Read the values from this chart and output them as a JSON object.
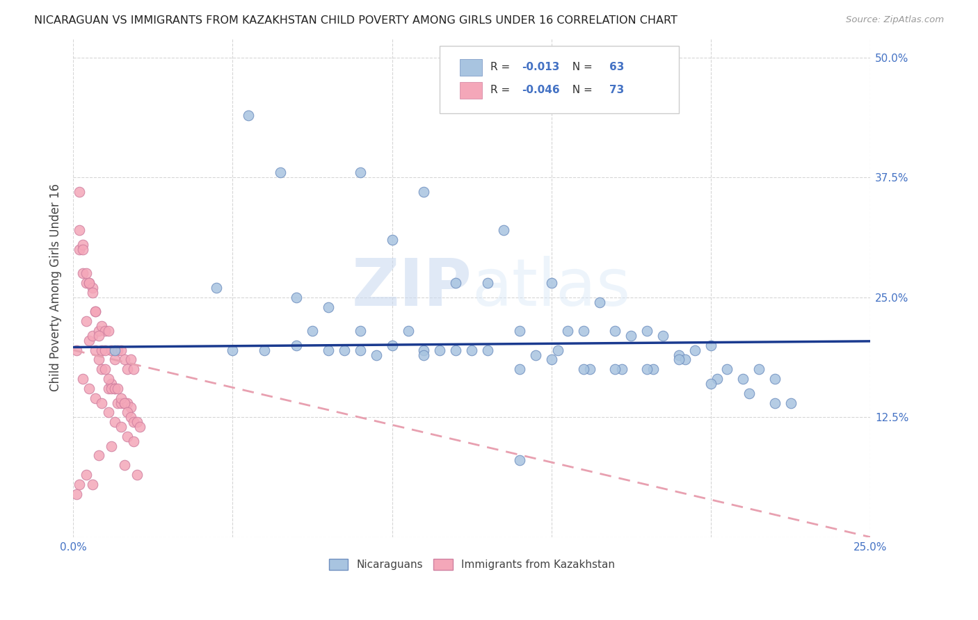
{
  "title": "NICARAGUAN VS IMMIGRANTS FROM KAZAKHSTAN CHILD POVERTY AMONG GIRLS UNDER 16 CORRELATION CHART",
  "source": "Source: ZipAtlas.com",
  "ylabel": "Child Poverty Among Girls Under 16",
  "legend_label_blue": "Nicaraguans",
  "legend_label_pink": "Immigrants from Kazakhstan",
  "R_blue": -0.013,
  "N_blue": 63,
  "R_pink": -0.046,
  "N_pink": 73,
  "xlim": [
    0.0,
    0.25
  ],
  "ylim": [
    0.0,
    0.52
  ],
  "xticks": [
    0.0,
    0.05,
    0.1,
    0.15,
    0.2,
    0.25
  ],
  "xticklabels": [
    "0.0%",
    "",
    "",
    "",
    "",
    "25.0%"
  ],
  "yticks": [
    0.0,
    0.125,
    0.25,
    0.375,
    0.5
  ],
  "yticklabels": [
    "",
    "12.5%",
    "25.0%",
    "37.5%",
    "50.0%"
  ],
  "watermark_ZIP": "ZIP",
  "watermark_atlas": "atlas",
  "color_blue": "#a8c4e0",
  "color_pink": "#f4a7b9",
  "color_trend_blue": "#1a3a8f",
  "color_trend_pink": "#e8a0b0",
  "blue_trend_intercept": 0.198,
  "blue_trend_slope": 0.025,
  "pink_trend_intercept": 0.195,
  "pink_trend_slope": -0.78,
  "blue_x": [
    0.013,
    0.055,
    0.065,
    0.09,
    0.1,
    0.11,
    0.12,
    0.13,
    0.135,
    0.14,
    0.15,
    0.155,
    0.16,
    0.165,
    0.17,
    0.175,
    0.18,
    0.185,
    0.19,
    0.195,
    0.2,
    0.205,
    0.21,
    0.215,
    0.22,
    0.225,
    0.045,
    0.07,
    0.08,
    0.085,
    0.095,
    0.105,
    0.115,
    0.125,
    0.145,
    0.152,
    0.162,
    0.172,
    0.182,
    0.192,
    0.202,
    0.212,
    0.06,
    0.075,
    0.09,
    0.11,
    0.13,
    0.15,
    0.17,
    0.19,
    0.05,
    0.08,
    0.1,
    0.12,
    0.14,
    0.16,
    0.18,
    0.2,
    0.07,
    0.09,
    0.11,
    0.22,
    0.14
  ],
  "blue_y": [
    0.195,
    0.44,
    0.38,
    0.38,
    0.31,
    0.36,
    0.265,
    0.265,
    0.32,
    0.215,
    0.265,
    0.215,
    0.215,
    0.245,
    0.215,
    0.21,
    0.215,
    0.21,
    0.19,
    0.195,
    0.2,
    0.175,
    0.165,
    0.175,
    0.165,
    0.14,
    0.26,
    0.25,
    0.24,
    0.195,
    0.19,
    0.215,
    0.195,
    0.195,
    0.19,
    0.195,
    0.175,
    0.175,
    0.175,
    0.185,
    0.165,
    0.15,
    0.195,
    0.215,
    0.215,
    0.195,
    0.195,
    0.185,
    0.175,
    0.185,
    0.195,
    0.195,
    0.2,
    0.195,
    0.175,
    0.175,
    0.175,
    0.16,
    0.2,
    0.195,
    0.19,
    0.14,
    0.08
  ],
  "pink_x": [
    0.001,
    0.002,
    0.002,
    0.003,
    0.003,
    0.004,
    0.004,
    0.005,
    0.005,
    0.006,
    0.006,
    0.007,
    0.007,
    0.008,
    0.008,
    0.009,
    0.009,
    0.01,
    0.01,
    0.011,
    0.011,
    0.012,
    0.012,
    0.013,
    0.013,
    0.014,
    0.014,
    0.015,
    0.015,
    0.016,
    0.016,
    0.017,
    0.017,
    0.018,
    0.018,
    0.019,
    0.002,
    0.003,
    0.004,
    0.005,
    0.006,
    0.007,
    0.008,
    0.009,
    0.01,
    0.011,
    0.012,
    0.013,
    0.014,
    0.015,
    0.016,
    0.017,
    0.018,
    0.019,
    0.02,
    0.021,
    0.003,
    0.005,
    0.007,
    0.009,
    0.011,
    0.013,
    0.015,
    0.017,
    0.019,
    0.001,
    0.004,
    0.008,
    0.012,
    0.016,
    0.02,
    0.002,
    0.006
  ],
  "pink_y": [
    0.195,
    0.36,
    0.3,
    0.305,
    0.275,
    0.265,
    0.225,
    0.265,
    0.205,
    0.26,
    0.21,
    0.235,
    0.195,
    0.215,
    0.185,
    0.22,
    0.175,
    0.215,
    0.175,
    0.215,
    0.155,
    0.195,
    0.16,
    0.185,
    0.155,
    0.195,
    0.14,
    0.195,
    0.14,
    0.185,
    0.14,
    0.175,
    0.14,
    0.185,
    0.135,
    0.175,
    0.32,
    0.3,
    0.275,
    0.265,
    0.255,
    0.235,
    0.21,
    0.195,
    0.195,
    0.165,
    0.155,
    0.155,
    0.155,
    0.145,
    0.14,
    0.13,
    0.125,
    0.12,
    0.12,
    0.115,
    0.165,
    0.155,
    0.145,
    0.14,
    0.13,
    0.12,
    0.115,
    0.105,
    0.1,
    0.045,
    0.065,
    0.085,
    0.095,
    0.075,
    0.065,
    0.055,
    0.055
  ]
}
